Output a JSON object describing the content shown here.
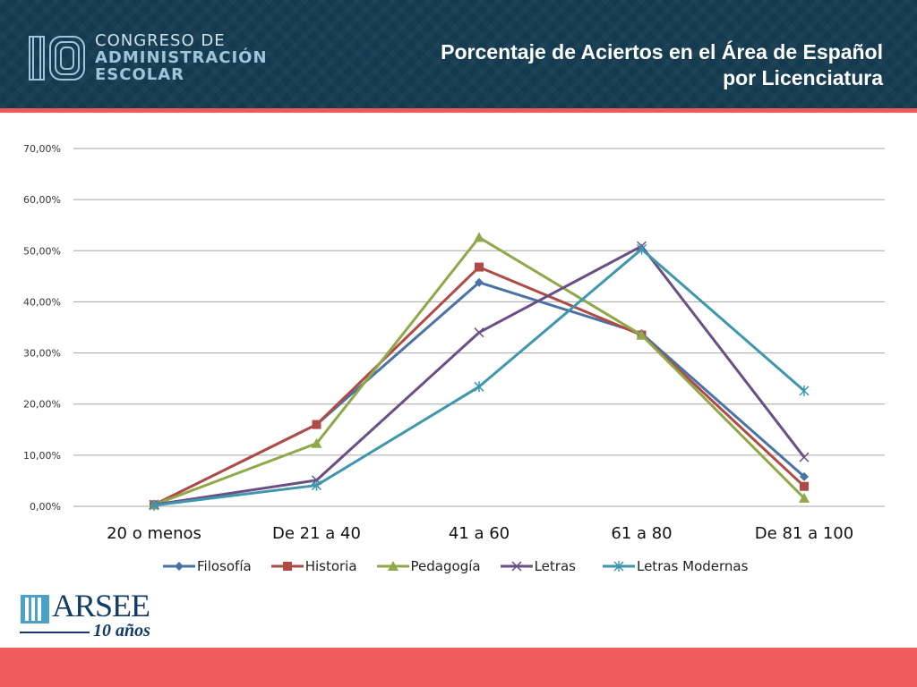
{
  "header": {
    "logo_number": "10",
    "logo_line1": "CONGRESO DE",
    "logo_line2": "ADMINISTRACIÓN",
    "logo_line3": "ESCOLAR",
    "title_line1": "Porcentaje de Aciertos en el Área de Español",
    "title_line2": "por Licenciatura"
  },
  "footer_logo": {
    "name": "ARSEE",
    "subtitle": "10 años"
  },
  "colors": {
    "header_bg": "#143a4f",
    "accent_red": "#ee5a5a",
    "gridline": "#a6a6a6"
  },
  "chart_data": {
    "type": "line",
    "title": "",
    "xlabel": "",
    "ylabel": "",
    "categories": [
      "20 o menos",
      "De 21 a 40",
      "41 a 60",
      "61 a 80",
      "De 81 a 100"
    ],
    "ylim": [
      0,
      70
    ],
    "yticks": [
      "0,00%",
      "10,00%",
      "20,00%",
      "30,00%",
      "40,00%",
      "50,00%",
      "60,00%",
      "70,00%"
    ],
    "grid": true,
    "legend_position": "bottom",
    "series": [
      {
        "name": "Filosofía",
        "color": "#4a72a6",
        "marker": "diamond",
        "values": [
          0.3,
          16.0,
          43.8,
          33.8,
          5.8
        ]
      },
      {
        "name": "Historia",
        "color": "#b04a47",
        "marker": "square",
        "values": [
          0.3,
          16.0,
          46.8,
          33.5,
          3.9
        ]
      },
      {
        "name": "Pedagogía",
        "color": "#8ea84a",
        "marker": "triangle",
        "values": [
          0.3,
          12.3,
          52.6,
          33.5,
          1.6
        ]
      },
      {
        "name": "Letras",
        "color": "#6a4f86",
        "marker": "x",
        "values": [
          0.3,
          5.1,
          34.0,
          50.9,
          9.6
        ]
      },
      {
        "name": "Letras Modernas",
        "color": "#3f97ad",
        "marker": "star",
        "values": [
          0.2,
          4.1,
          23.4,
          50.3,
          22.6
        ]
      }
    ]
  }
}
